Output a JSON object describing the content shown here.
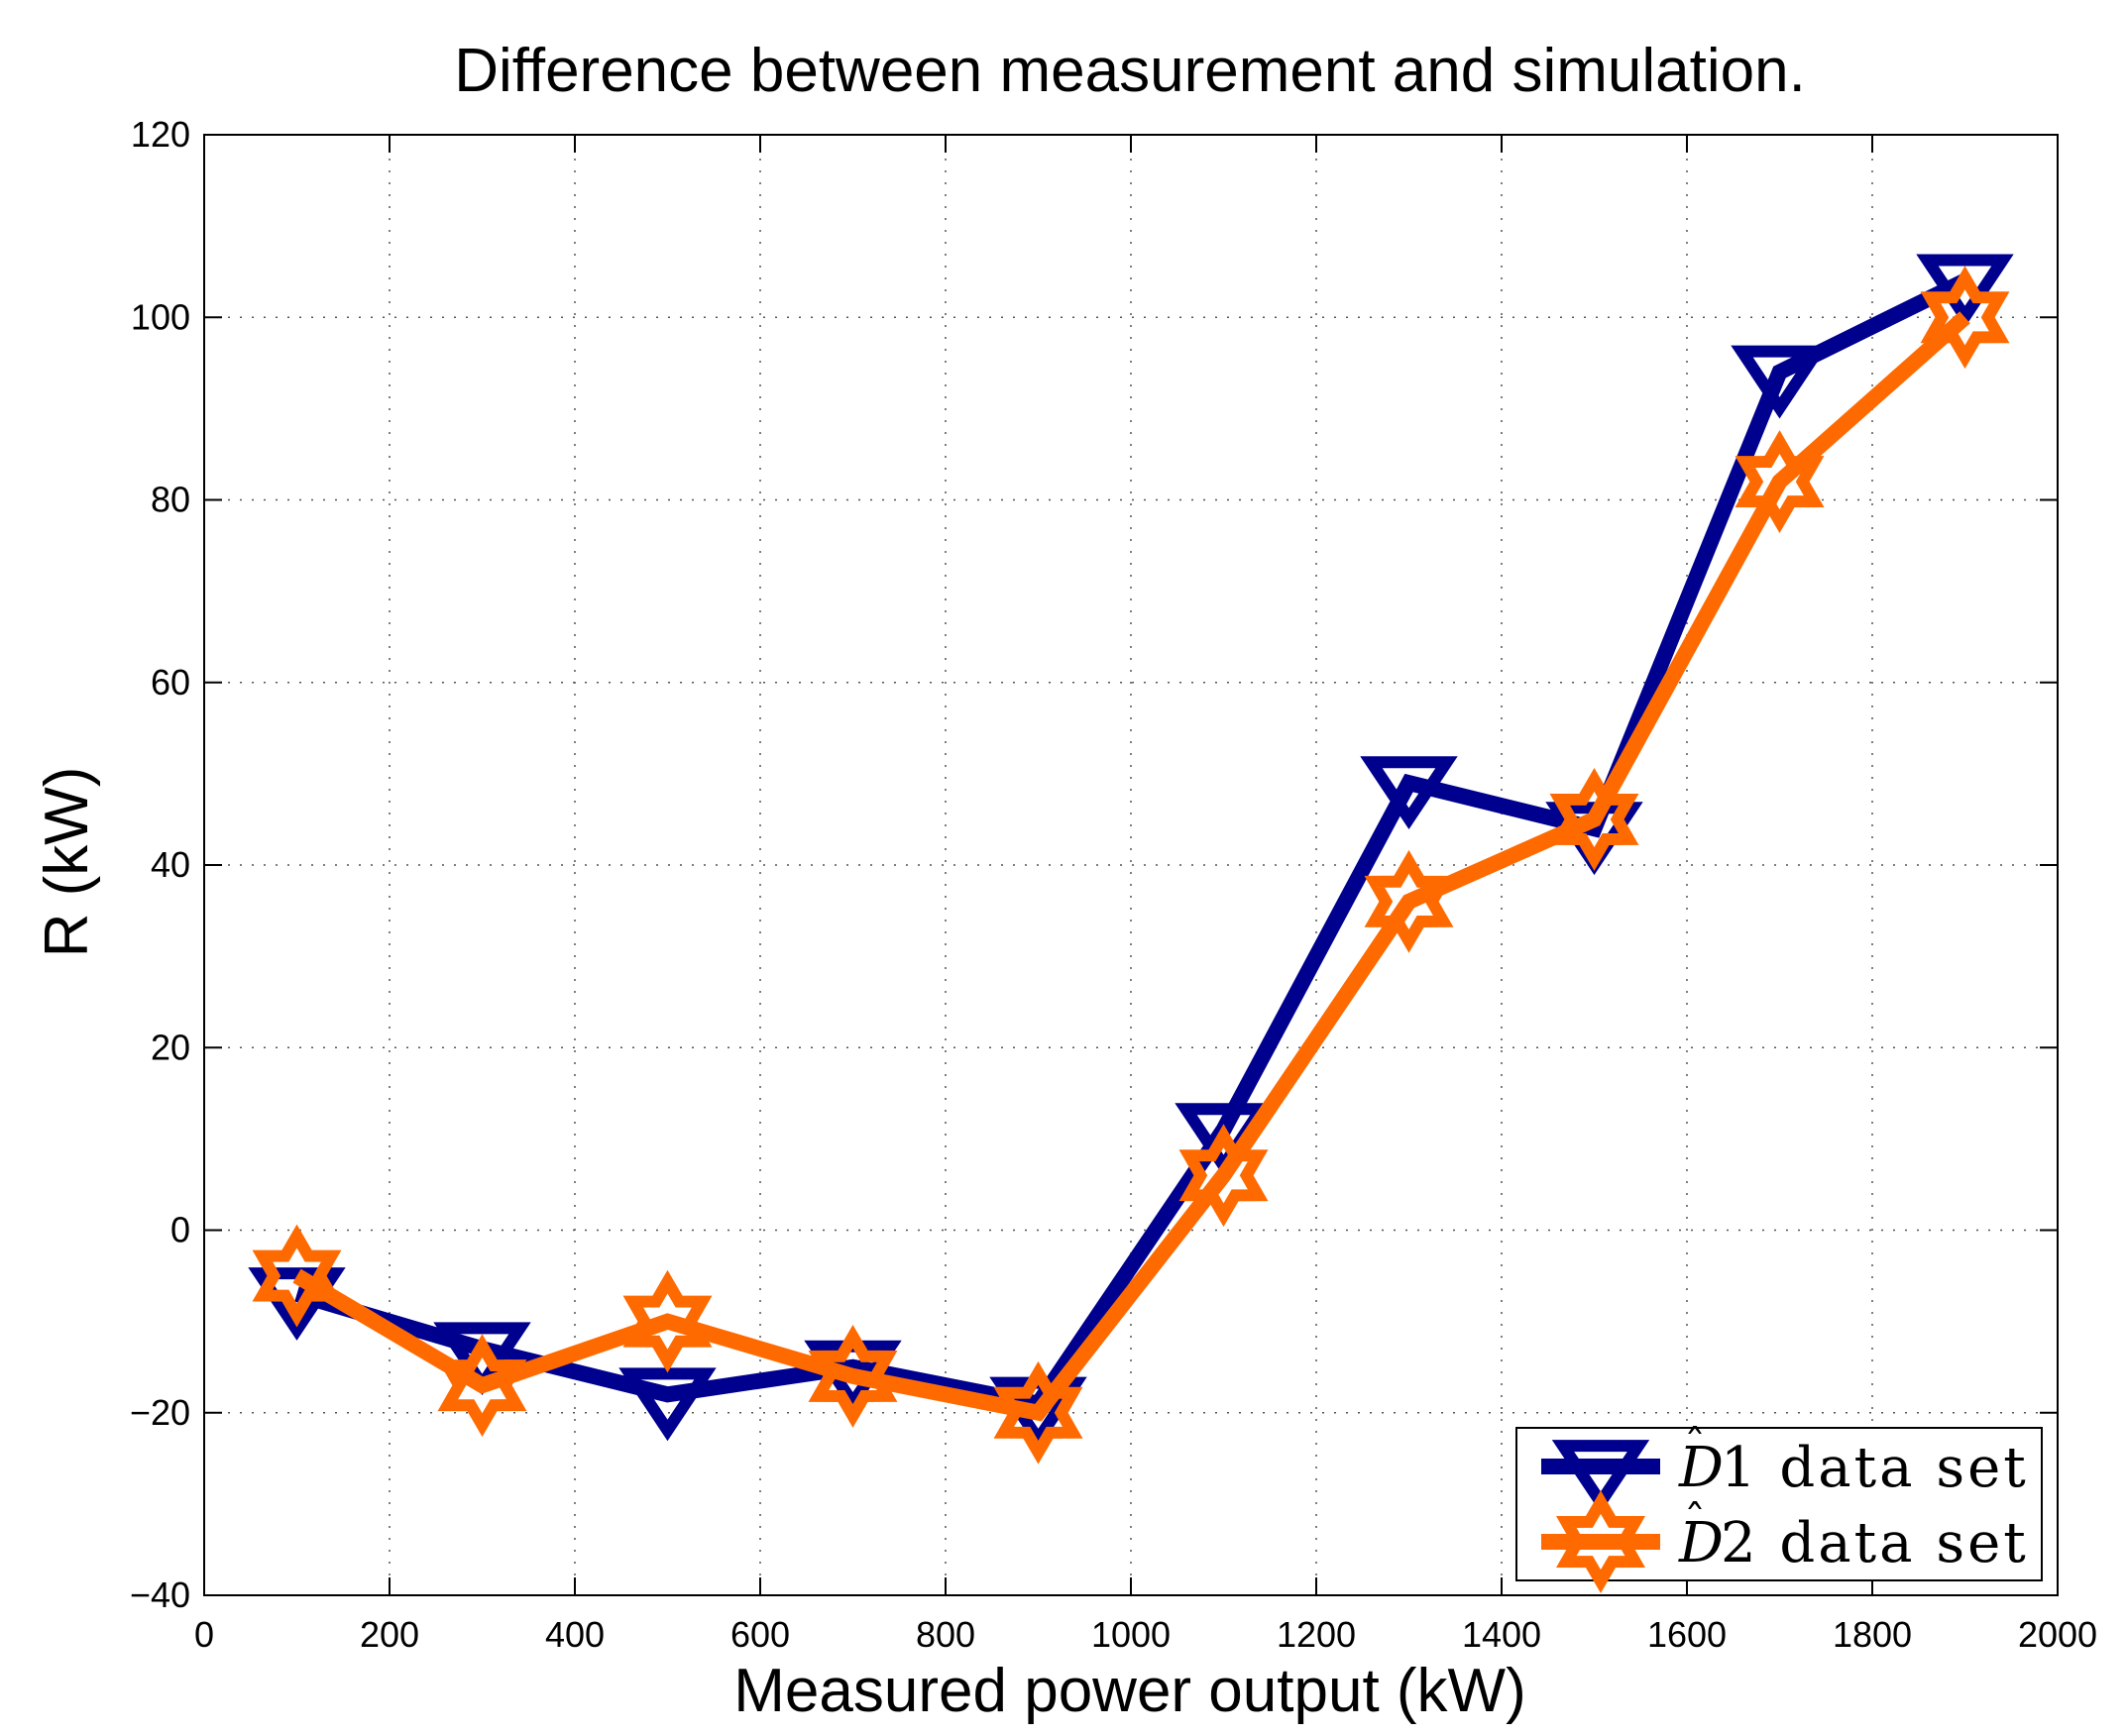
{
  "chart_data": {
    "type": "line",
    "title": "Difference between measurement and simulation.",
    "xlabel": "Measured power output (kW)",
    "ylabel": "R (kW)",
    "xlim": [
      0,
      2000
    ],
    "ylim": [
      -40,
      120
    ],
    "xticks": [
      0,
      200,
      400,
      600,
      800,
      1000,
      1200,
      1400,
      1600,
      1800,
      2000
    ],
    "yticks": [
      -40,
      -20,
      0,
      20,
      40,
      60,
      80,
      100,
      120
    ],
    "xtick_labels": [
      "0",
      "200",
      "400",
      "600",
      "800",
      "1000",
      "1200",
      "1400",
      "1600",
      "1800",
      "2000"
    ],
    "ytick_labels": [
      "−40",
      "−20",
      "0",
      "20",
      "40",
      "60",
      "80",
      "100",
      "120"
    ],
    "grid": true,
    "legend_position": "bottom-right",
    "x": [
      100,
      300,
      500,
      700,
      900,
      1100,
      1300,
      1500,
      1700,
      1900
    ],
    "series": [
      {
        "name": "D̂1 data set",
        "legend_letter": "D",
        "legend_hat": "ˆ",
        "legend_rest": "1 data set",
        "color": "#00008f",
        "marker": "triangle-down",
        "values": [
          -7,
          -13,
          -18,
          -15,
          -19,
          11,
          49,
          44,
          94,
          104
        ]
      },
      {
        "name": "D̂2 data set",
        "legend_letter": "D",
        "legend_hat": "ˆ",
        "legend_rest": "2 data set",
        "color": "#ff6a00",
        "marker": "hexagram",
        "values": [
          -5,
          -17,
          -10,
          -16,
          -20,
          6,
          36,
          45,
          82,
          100
        ]
      }
    ]
  }
}
